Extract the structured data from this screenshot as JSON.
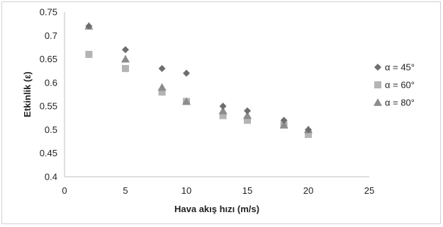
{
  "chart_data": {
    "type": "scatter",
    "title": "",
    "xlabel": "Hava akış hızı (m/s)",
    "ylabel": "Etkinlik (ε)",
    "xlim": [
      0,
      25
    ],
    "ylim": [
      0.4,
      0.75
    ],
    "x_ticks": [
      0,
      5,
      10,
      15,
      20,
      25
    ],
    "x_tick_labels": [
      "0",
      "5",
      "10",
      "15",
      "20",
      "25"
    ],
    "y_ticks": [
      0.4,
      0.45,
      0.5,
      0.55,
      0.6,
      0.65,
      0.7,
      0.75
    ],
    "y_tick_labels": [
      "0.4",
      "0.45",
      "0.5",
      "0.55",
      "0.6",
      "0.65",
      "0.7",
      "0.75"
    ],
    "grid": false,
    "legend_position": "right",
    "series": [
      {
        "name": "α = 45°",
        "marker": "diamond",
        "color": "#6e6e6e",
        "x": [
          2,
          5,
          8,
          10,
          13,
          15,
          18,
          20
        ],
        "y": [
          0.72,
          0.67,
          0.63,
          0.62,
          0.55,
          0.54,
          0.52,
          0.5
        ]
      },
      {
        "name": "α = 60°",
        "marker": "square",
        "color": "#b4b4b4",
        "x": [
          2,
          5,
          8,
          10,
          13,
          15,
          18,
          20
        ],
        "y": [
          0.66,
          0.63,
          0.58,
          0.56,
          0.53,
          0.52,
          0.51,
          0.49
        ]
      },
      {
        "name": "α = 80°",
        "marker": "triangle",
        "color": "#8c8c8c",
        "x": [
          2,
          5,
          8,
          10,
          13,
          15,
          18,
          20
        ],
        "y": [
          0.72,
          0.65,
          0.59,
          0.56,
          0.54,
          0.53,
          0.51,
          0.5
        ]
      }
    ]
  }
}
